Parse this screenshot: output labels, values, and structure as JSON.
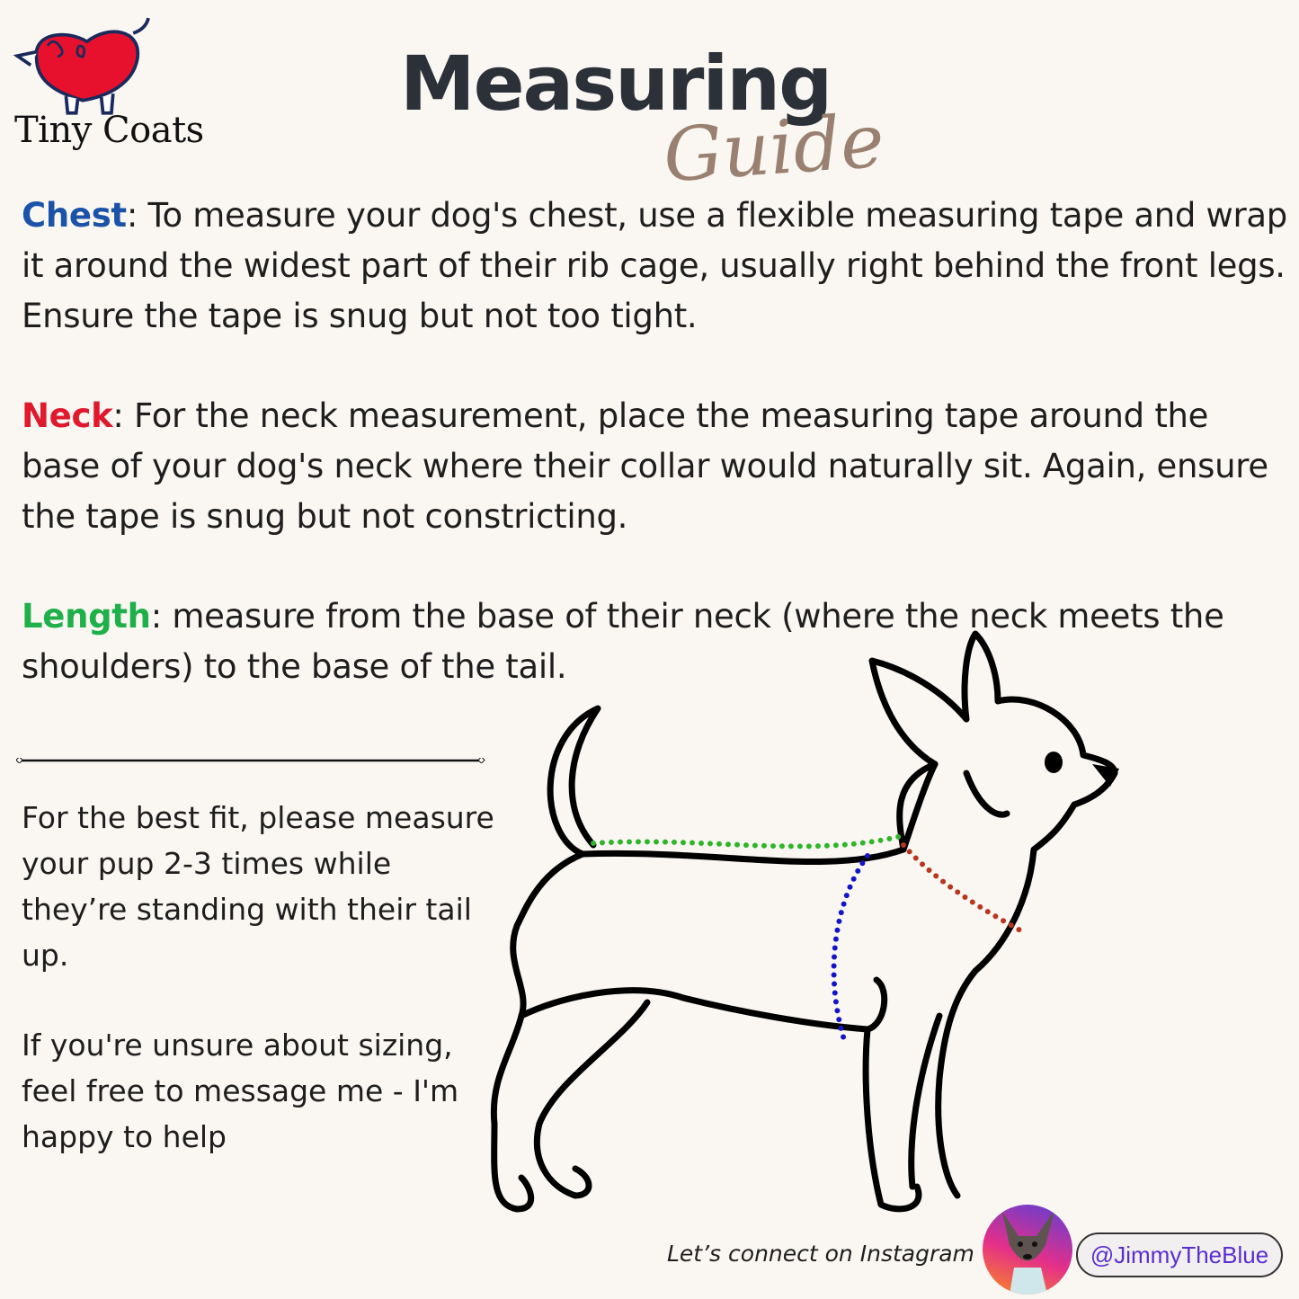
{
  "brand": {
    "name": "Tiny Coats",
    "logo_color": "#e8112d"
  },
  "header": {
    "title": "Measuring",
    "subtitle": "Guide"
  },
  "sections": [
    {
      "label": "Chest",
      "color": "#1a53a8",
      "text": ": To measure your dog's chest, use a flexible measuring tape and wrap it around the widest part of their rib cage, usually right behind the front legs. Ensure the tape is snug but not too tight."
    },
    {
      "label": "Neck",
      "color": "#e0192d",
      "text": ": For the neck measurement, place the measuring tape around the base of your dog's neck where their collar would naturally sit. Again, ensure the tape is snug but not constricting."
    },
    {
      "label": "Length",
      "color": "#1fb04a",
      "text": ": measure from the base of their neck (where the neck meets the shoulders) to the base of the tail."
    }
  ],
  "notes": [
    "For the best fit, please measure your pup 2-3 times while they’re standing with their tail up.",
    "If you're unsure about sizing, feel free to message me - I'm happy to help"
  ],
  "illustration": {
    "chest_line_color": "#1414c8",
    "neck_line_color": "#b8361c",
    "length_line_color": "#2fb52a"
  },
  "footer": {
    "connect_text": "Let’s connect on Instagram",
    "handle": "@JimmyTheBlue"
  }
}
